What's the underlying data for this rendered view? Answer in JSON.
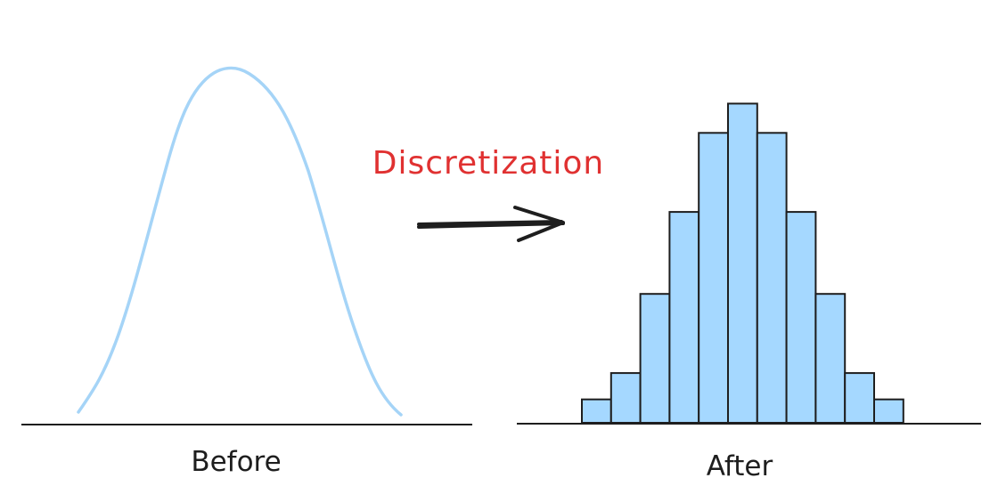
{
  "diagram": {
    "title": "Discretization",
    "before_label": "Before",
    "after_label": "After",
    "colors": {
      "curve": "#a5d4f7",
      "bar_fill": "#a5d8ff",
      "bar_stroke": "#1e1e1e",
      "axis": "#1e1e1e",
      "arrow": "#1e1e1e",
      "title": "#e03131",
      "caption": "#1e1e1e"
    },
    "histogram": {
      "bar_count": 11,
      "relative_heights": [
        0.08,
        0.17,
        0.44,
        0.72,
        0.99,
        1.09,
        0.99,
        0.72,
        0.44,
        0.17,
        0.08
      ]
    }
  }
}
